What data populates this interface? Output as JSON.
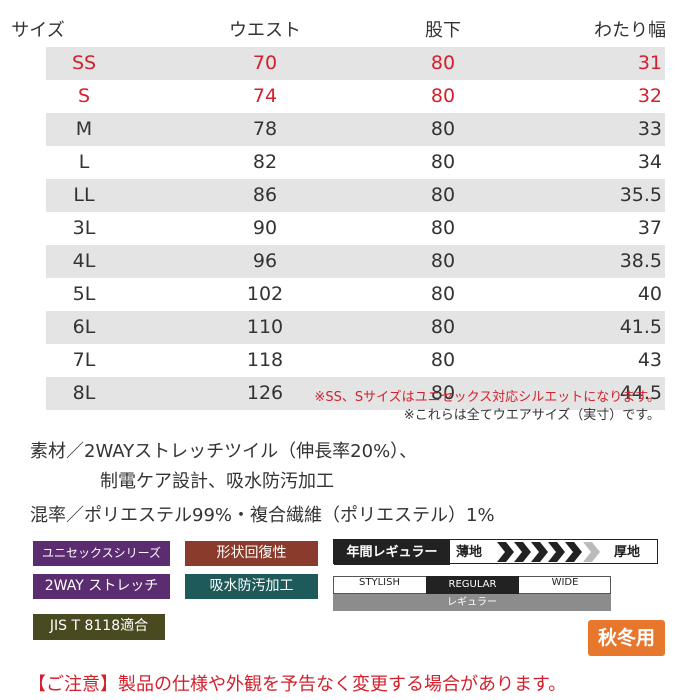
{
  "table": {
    "headers": [
      "サイズ",
      "ウエスト",
      "股下",
      "わたり幅"
    ],
    "rows": [
      [
        "SS",
        "70",
        "80",
        "31"
      ],
      [
        "S",
        "74",
        "80",
        "32"
      ],
      [
        "M",
        "78",
        "80",
        "33"
      ],
      [
        "L",
        "82",
        "80",
        "34"
      ],
      [
        "LL",
        "86",
        "80",
        "35.5"
      ],
      [
        "3L",
        "90",
        "80",
        "37"
      ],
      [
        "4L",
        "96",
        "80",
        "38.5"
      ],
      [
        "5L",
        "102",
        "80",
        "40"
      ],
      [
        "6L",
        "110",
        "80",
        "41.5"
      ],
      [
        "7L",
        "118",
        "80",
        "43"
      ],
      [
        "8L",
        "126",
        "80",
        "44.5"
      ]
    ]
  },
  "notes": [
    "※SS、Sサイズはユニセックス対応シルエットになります。",
    "※これらは全てウエアサイズ（実寸）です。"
  ],
  "material": [
    "素材／2WAYストレッチツイル（伸長率20%）、",
    "制電ケア設計、吸水防汚加工",
    "混率／ポリエステル99%・複合繊維（ポリエステル）1%"
  ],
  "badges": [
    "ユニセックスシリーズ",
    "形状回復性",
    "2WAY ストレッチ",
    "吸水防汚加工",
    "JIS T 8118適合"
  ],
  "fabric_gauge": {
    "label": "年間レギュラー",
    "thin": "薄地",
    "thick": "厚地"
  },
  "fit_scale": {
    "options": [
      "STYLISH",
      "REGULAR",
      "WIDE"
    ],
    "caption": "レギュラー"
  },
  "season": "秋冬用",
  "notice": "【ご注意】製品の仕様や外観を予告なく変更する場合があります。"
}
